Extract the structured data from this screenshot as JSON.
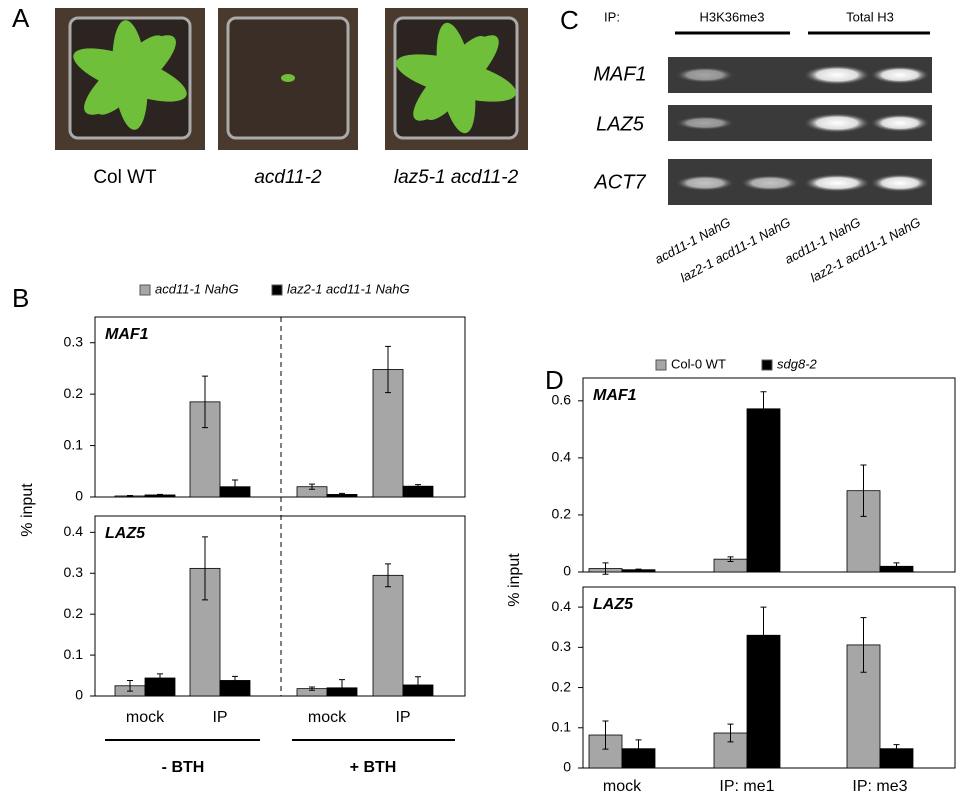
{
  "panel_labels": [
    "A",
    "B",
    "C",
    "D"
  ],
  "panel_a": {
    "captions": [
      "Col WT",
      "acd11-2",
      "laz5-1 acd11-2"
    ]
  },
  "panel_c": {
    "ip_label": "IP:",
    "groups": [
      "H3K36me3",
      "Total H3"
    ],
    "rows": [
      "MAF1",
      "LAZ5",
      "ACT7"
    ],
    "lanes": [
      "acd11-1 NahG",
      "laz2-1 acd11-1 NahG",
      "acd11-1 NahG",
      "laz2-1 acd11-1 NahG"
    ]
  },
  "chart_data": [
    {
      "type": "bar",
      "ylabel": "% input",
      "categories": [
        "mock",
        "IP",
        "mock",
        "IP"
      ],
      "group_labels": [
        "- BTH",
        "+ BTH"
      ],
      "series": [
        {
          "name": "acd11-1 NahG",
          "color": "#a6a6a6"
        },
        {
          "name": "laz2-1 acd11-1 NahG",
          "color": "#000000"
        }
      ],
      "panels": [
        {
          "title": "MAF1",
          "ylim": [
            0,
            0.35
          ],
          "yticks": [
            0,
            0.1,
            0.2,
            0.3
          ],
          "series": [
            {
              "values": [
                0.002,
                0.185,
                0.02,
                0.248
              ],
              "errors": [
                0.001,
                0.05,
                0.005,
                0.045
              ]
            },
            {
              "values": [
                0.004,
                0.02,
                0.005,
                0.021
              ],
              "errors": [
                0.001,
                0.013,
                0.002,
                0.003
              ]
            }
          ]
        },
        {
          "title": "LAZ5",
          "ylim": [
            0,
            0.44
          ],
          "yticks": [
            0,
            0.1,
            0.2,
            0.3,
            0.4
          ],
          "series": [
            {
              "values": [
                0.025,
                0.312,
                0.018,
                0.295
              ],
              "errors": [
                0.013,
                0.077,
                0.004,
                0.028
              ]
            },
            {
              "values": [
                0.044,
                0.038,
                0.02,
                0.027
              ],
              "errors": [
                0.01,
                0.01,
                0.02,
                0.02
              ]
            }
          ]
        }
      ]
    },
    {
      "type": "bar",
      "ylabel": "% input",
      "categories": [
        "mock",
        "IP: me1",
        "IP: me3"
      ],
      "series": [
        {
          "name": "Col-0 WT",
          "color": "#a6a6a6"
        },
        {
          "name": "sdg8-2",
          "color": "#000000"
        }
      ],
      "panels": [
        {
          "title": "MAF1",
          "ylim": [
            0,
            0.68
          ],
          "yticks": [
            0,
            0.2,
            0.4,
            0.6
          ],
          "series": [
            {
              "values": [
                0.012,
                0.045,
                0.285
              ],
              "errors": [
                0.02,
                0.008,
                0.09
              ]
            },
            {
              "values": [
                0.008,
                0.572,
                0.02
              ],
              "errors": [
                0.002,
                0.06,
                0.012
              ]
            }
          ]
        },
        {
          "title": "LAZ5",
          "ylim": [
            0,
            0.45
          ],
          "yticks": [
            0,
            0.1,
            0.2,
            0.3,
            0.4
          ],
          "series": [
            {
              "values": [
                0.082,
                0.087,
                0.306
              ],
              "errors": [
                0.035,
                0.022,
                0.068
              ]
            },
            {
              "values": [
                0.048,
                0.33,
                0.048
              ],
              "errors": [
                0.022,
                0.07,
                0.01
              ]
            }
          ]
        }
      ]
    }
  ]
}
